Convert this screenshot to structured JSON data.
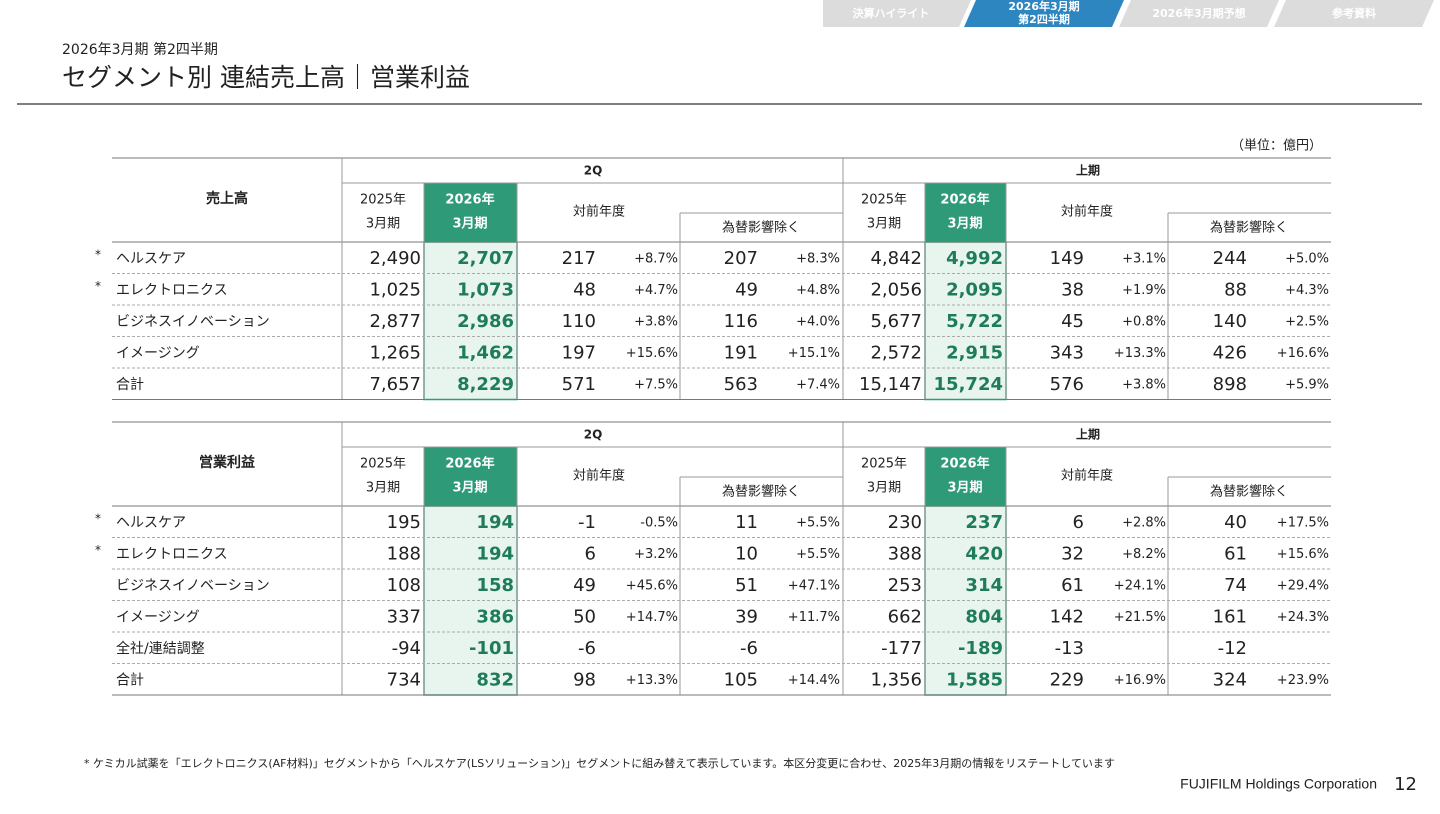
{
  "nav": [
    {
      "lines": [
        "決算ハイライト"
      ],
      "active": false
    },
    {
      "lines": [
        "2026年3月期",
        "第2四半期"
      ],
      "active": true
    },
    {
      "lines": [
        "2026年3月期予想"
      ],
      "active": false
    },
    {
      "lines": [
        "参考資料"
      ],
      "active": false
    }
  ],
  "header": {
    "subtitle": "2026年3月期 第2四半期",
    "title": "セグメント別 連結売上高｜営業利益"
  },
  "unit": "（単位：億円）",
  "column_headers": {
    "periods": [
      "2Q",
      "上期"
    ],
    "prev": [
      "2025年",
      "3月期"
    ],
    "curr": [
      "2026年",
      "3月期"
    ],
    "yoy": "対前年度",
    "fx": "為替影響除く"
  },
  "tables": [
    {
      "heading": "売上高",
      "rows": [
        {
          "mark": "*",
          "name": "ヘルスケア",
          "cells": [
            "2,490",
            "2,707",
            "217",
            "+8.7%",
            "207",
            "+8.3%",
            "4,842",
            "4,992",
            "149",
            "+3.1%",
            "244",
            "+5.0%"
          ]
        },
        {
          "mark": "*",
          "name": "エレクトロニクス",
          "cells": [
            "1,025",
            "1,073",
            "48",
            "+4.7%",
            "49",
            "+4.8%",
            "2,056",
            "2,095",
            "38",
            "+1.9%",
            "88",
            "+4.3%"
          ]
        },
        {
          "name": "ビジネスイノベーション",
          "cells": [
            "2,877",
            "2,986",
            "110",
            "+3.8%",
            "116",
            "+4.0%",
            "5,677",
            "5,722",
            "45",
            "+0.8%",
            "140",
            "+2.5%"
          ]
        },
        {
          "name": "イメージング",
          "cells": [
            "1,265",
            "1,462",
            "197",
            "+15.6%",
            "191",
            "+15.1%",
            "2,572",
            "2,915",
            "343",
            "+13.3%",
            "426",
            "+16.6%"
          ]
        },
        {
          "name": "合計",
          "cells": [
            "7,657",
            "8,229",
            "571",
            "+7.5%",
            "563",
            "+7.4%",
            "15,147",
            "15,724",
            "576",
            "+3.8%",
            "898",
            "+5.9%"
          ]
        }
      ]
    },
    {
      "heading": "営業利益",
      "rows": [
        {
          "mark": "*",
          "name": "ヘルスケア",
          "cells": [
            "195",
            "194",
            "-1",
            "-0.5%",
            "11",
            "+5.5%",
            "230",
            "237",
            "6",
            "+2.8%",
            "40",
            "+17.5%"
          ]
        },
        {
          "mark": "*",
          "name": "エレクトロニクス",
          "cells": [
            "188",
            "194",
            "6",
            "+3.2%",
            "10",
            "+5.5%",
            "388",
            "420",
            "32",
            "+8.2%",
            "61",
            "+15.6%"
          ]
        },
        {
          "name": "ビジネスイノベーション",
          "cells": [
            "108",
            "158",
            "49",
            "+45.6%",
            "51",
            "+47.1%",
            "253",
            "314",
            "61",
            "+24.1%",
            "74",
            "+29.4%"
          ]
        },
        {
          "name": "イメージング",
          "cells": [
            "337",
            "386",
            "50",
            "+14.7%",
            "39",
            "+11.7%",
            "662",
            "804",
            "142",
            "+21.5%",
            "161",
            "+24.3%"
          ]
        },
        {
          "name": "全社/連結調整",
          "cells": [
            "-94",
            "-101",
            "-6",
            null,
            "-6",
            null,
            "-177",
            "-189",
            "-13",
            null,
            "-12",
            null
          ]
        },
        {
          "name": "合計",
          "cells": [
            "734",
            "832",
            "98",
            "+13.3%",
            "105",
            "+14.4%",
            "1,356",
            "1,585",
            "229",
            "+16.9%",
            "324",
            "+23.9%"
          ]
        }
      ]
    }
  ],
  "footnote": "* ケミカル試薬を「エレクトロニクス(AF材料)」セグメントから「ヘルスケア(LSソリューション)」セグメントに組み替えて表示しています。本区分変更に合わせ、2025年3月期の情報をリステートしています",
  "footer": {
    "company": "FUJIFILM Holdings Corporation",
    "page": "12"
  }
}
